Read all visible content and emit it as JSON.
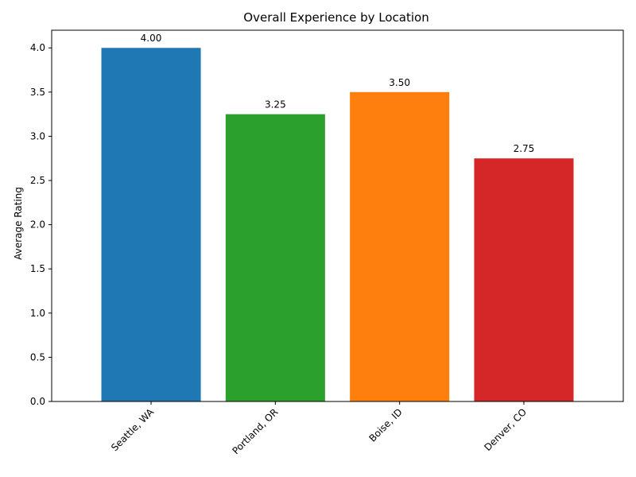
{
  "chart_data": {
    "type": "bar",
    "title": "Overall Experience by Location",
    "xlabel": "",
    "ylabel": "Average Rating",
    "categories": [
      "Seattle, WA",
      "Portland, OR",
      "Boise, ID",
      "Denver, CO"
    ],
    "values": [
      4.0,
      3.25,
      3.5,
      2.75
    ],
    "data_labels": [
      "4.00",
      "3.25",
      "3.50",
      "2.75"
    ],
    "colors": [
      "#1f77b4",
      "#2ca02c",
      "#ff7f0e",
      "#d62728"
    ],
    "ylim": [
      0,
      4.2
    ],
    "yticks": [
      0.0,
      0.5,
      1.0,
      1.5,
      2.0,
      2.5,
      3.0,
      3.5,
      4.0
    ],
    "ytick_labels": [
      "0.0",
      "0.5",
      "1.0",
      "1.5",
      "2.0",
      "2.5",
      "3.0",
      "3.5",
      "4.0"
    ],
    "grid": false,
    "x_tick_rotation_deg": 45
  }
}
